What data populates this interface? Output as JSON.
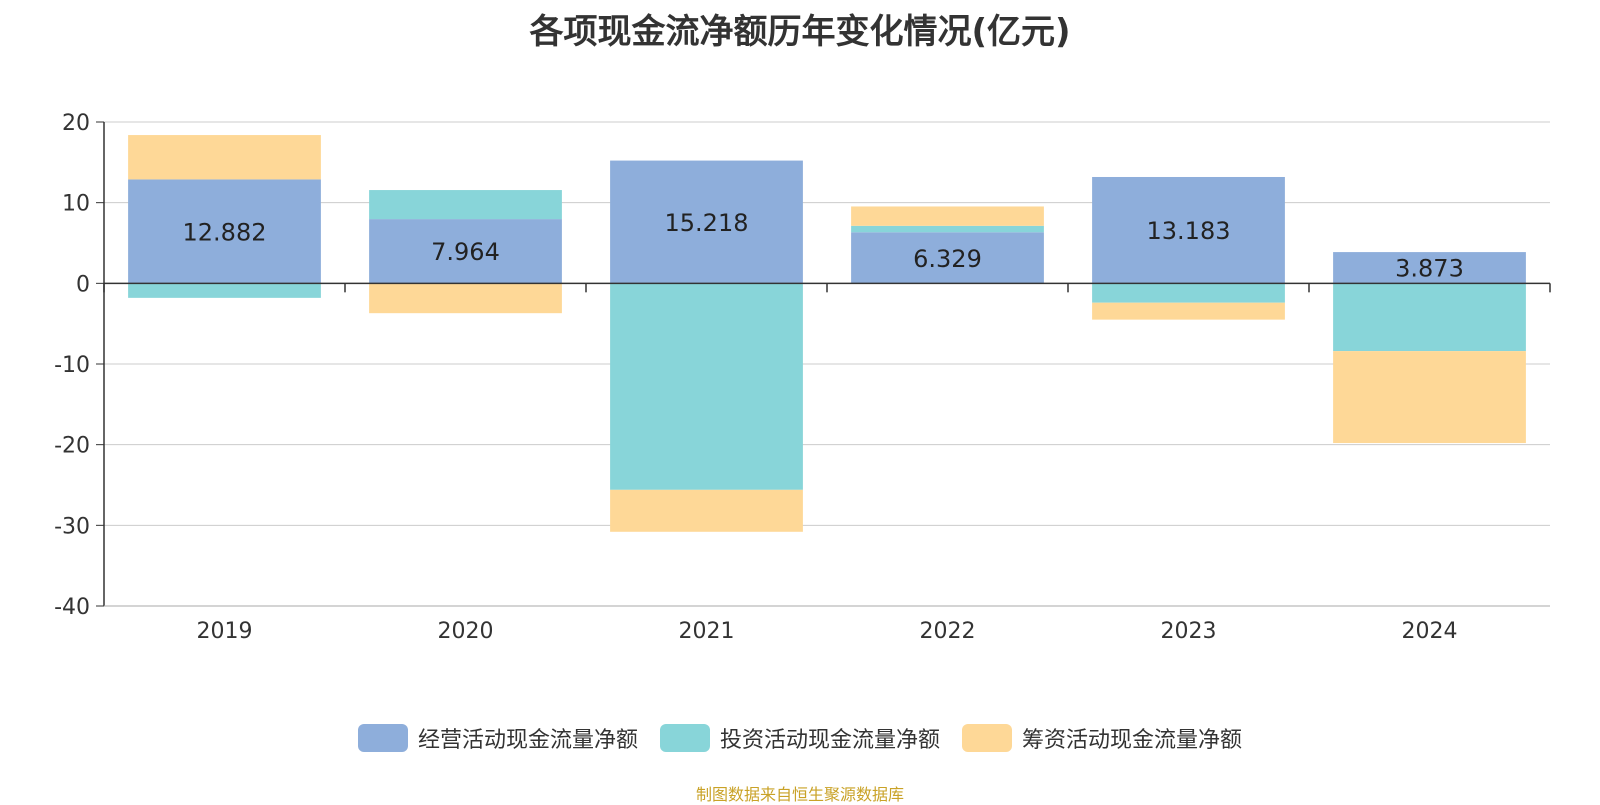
{
  "chart_data": {
    "type": "bar",
    "stacked": true,
    "title": "各项现金流净额历年变化情况(亿元)",
    "categories": [
      "2019",
      "2020",
      "2021",
      "2022",
      "2023",
      "2024"
    ],
    "ylim": [
      -40,
      20
    ],
    "yticks": [
      20,
      10,
      0,
      -10,
      -20,
      -30,
      -40
    ],
    "grid": true,
    "legend_position": "bottom",
    "series": [
      {
        "name": "经营活动现金流量净额",
        "color": "#8eaedb",
        "values": [
          12.882,
          7.964,
          15.218,
          6.329,
          13.183,
          3.873
        ],
        "labels": [
          "12.882",
          "7.964",
          "15.218",
          "6.329",
          "13.183",
          "3.873"
        ]
      },
      {
        "name": "投资活动现金流量净额",
        "color": "#88d5d9",
        "values": [
          -1.8,
          3.6,
          -25.6,
          0.8,
          -2.4,
          -8.4
        ]
      },
      {
        "name": "筹资活动现金流量净额",
        "color": "#fed897",
        "values": [
          5.5,
          -3.7,
          -5.2,
          2.4,
          -2.1,
          -11.4
        ]
      }
    ]
  },
  "source_text": "制图数据来自恒生聚源数据库"
}
